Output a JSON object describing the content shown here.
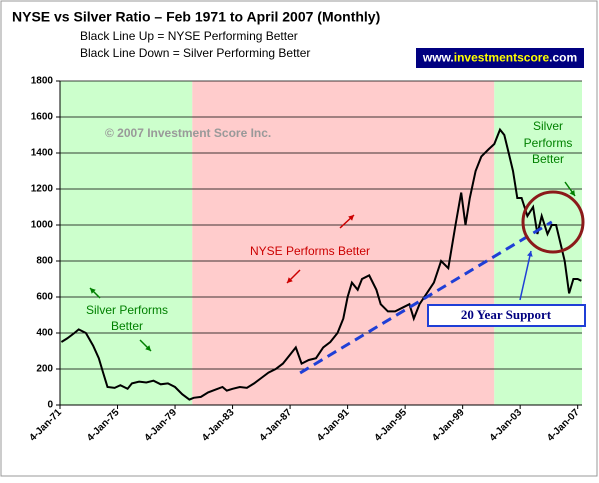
{
  "chart_data": {
    "type": "line",
    "title": "NYSE vs Silver Ratio – Feb 1971 to April 2007 (Monthly)",
    "subtitle": [
      "Black Line Up = NYSE Performing Better",
      "Black Line Down = Silver Performing Better"
    ],
    "badge": [
      "www.",
      "investmentscore",
      ".com"
    ],
    "annotations": [
      "© 2007 Investment Score Inc.",
      "NYSE Performs Better",
      "Silver Performs",
      "Better",
      "Silver",
      "Performs",
      "Better",
      "20 Year Support"
    ],
    "regions": [
      {
        "start": 1971,
        "end": 1980.2,
        "color": "#ccffcc"
      },
      {
        "start": 1980.2,
        "end": 2001.2,
        "color": "#ffcccc"
      },
      {
        "start": 2001.2,
        "end": 2007.3,
        "color": "#ccffcc"
      }
    ],
    "support_line": {
      "x": [
        1987.7,
        2005.2
      ],
      "y": [
        178,
        1017
      ],
      "color": "#1f3fd6"
    },
    "x": [
      1971.1,
      1971.5,
      1972,
      1972.3,
      1972.8,
      1973.3,
      1973.7,
      1974,
      1974.3,
      1974.8,
      1975.2,
      1975.7,
      1976,
      1976.5,
      1977,
      1977.5,
      1978,
      1978.5,
      1979,
      1979.5,
      1980,
      1980.3,
      1980.8,
      1981.3,
      1981.8,
      1982.3,
      1982.6,
      1983,
      1983.5,
      1984,
      1984.5,
      1985,
      1985.5,
      1986,
      1986.5,
      1987,
      1987.4,
      1987.8,
      1988.3,
      1988.8,
      1989.3,
      1989.8,
      1990.3,
      1990.7,
      1991,
      1991.3,
      1991.7,
      1992,
      1992.5,
      1993,
      1993.3,
      1993.8,
      1994.3,
      1994.8,
      1995.3,
      1995.6,
      1996,
      1996.5,
      1997,
      1997.5,
      1998,
      1998.5,
      1998.9,
      1999.2,
      1999.5,
      1999.9,
      2000.3,
      2000.8,
      2001.2,
      2001.6,
      2001.9,
      2002.2,
      2002.5,
      2002.8,
      2003.1,
      2003.5,
      2003.9,
      2004.2,
      2004.5,
      2004.9,
      2005.2,
      2005.5,
      2005.8,
      2006.1,
      2006.4,
      2006.7,
      2007,
      2007.25
    ],
    "series": [
      {
        "name": "NYSE / Silver",
        "color": "#000000",
        "values": [
          350,
          370,
          400,
          420,
          400,
          330,
          260,
          180,
          100,
          95,
          110,
          90,
          120,
          130,
          125,
          135,
          115,
          120,
          100,
          60,
          30,
          40,
          45,
          70,
          85,
          100,
          80,
          90,
          100,
          95,
          120,
          150,
          180,
          200,
          230,
          280,
          320,
          230,
          250,
          260,
          320,
          350,
          400,
          480,
          600,
          680,
          640,
          700,
          720,
          640,
          560,
          520,
          520,
          540,
          560,
          480,
          560,
          620,
          680,
          800,
          760,
          1000,
          1180,
          1000,
          1150,
          1300,
          1380,
          1420,
          1450,
          1530,
          1500,
          1400,
          1300,
          1150,
          1150,
          1050,
          1100,
          950,
          1050,
          950,
          1000,
          1000,
          900,
          800,
          620,
          700,
          700,
          690
        ]
      }
    ],
    "xlim": [
      1971,
      2007.3
    ],
    "ylim": [
      0,
      1800
    ],
    "xticks": [
      {
        "value": 1971,
        "label": "4-Jan-71"
      },
      {
        "value": 1975,
        "label": "4-Jan-75"
      },
      {
        "value": 1979,
        "label": "4-Jan-79"
      },
      {
        "value": 1983,
        "label": "4-Jan-83"
      },
      {
        "value": 1987,
        "label": "4-Jan-87"
      },
      {
        "value": 1991,
        "label": "4-Jan-91"
      },
      {
        "value": 1995,
        "label": "4-Jan-95"
      },
      {
        "value": 1999,
        "label": "4-Jan-99"
      },
      {
        "value": 2003,
        "label": "4-Jan-03"
      },
      {
        "value": 2007,
        "label": "4-Jan-07"
      }
    ],
    "yticks": [
      0,
      200,
      400,
      600,
      800,
      1000,
      1200,
      1400,
      1600,
      1800
    ],
    "grid": true
  }
}
